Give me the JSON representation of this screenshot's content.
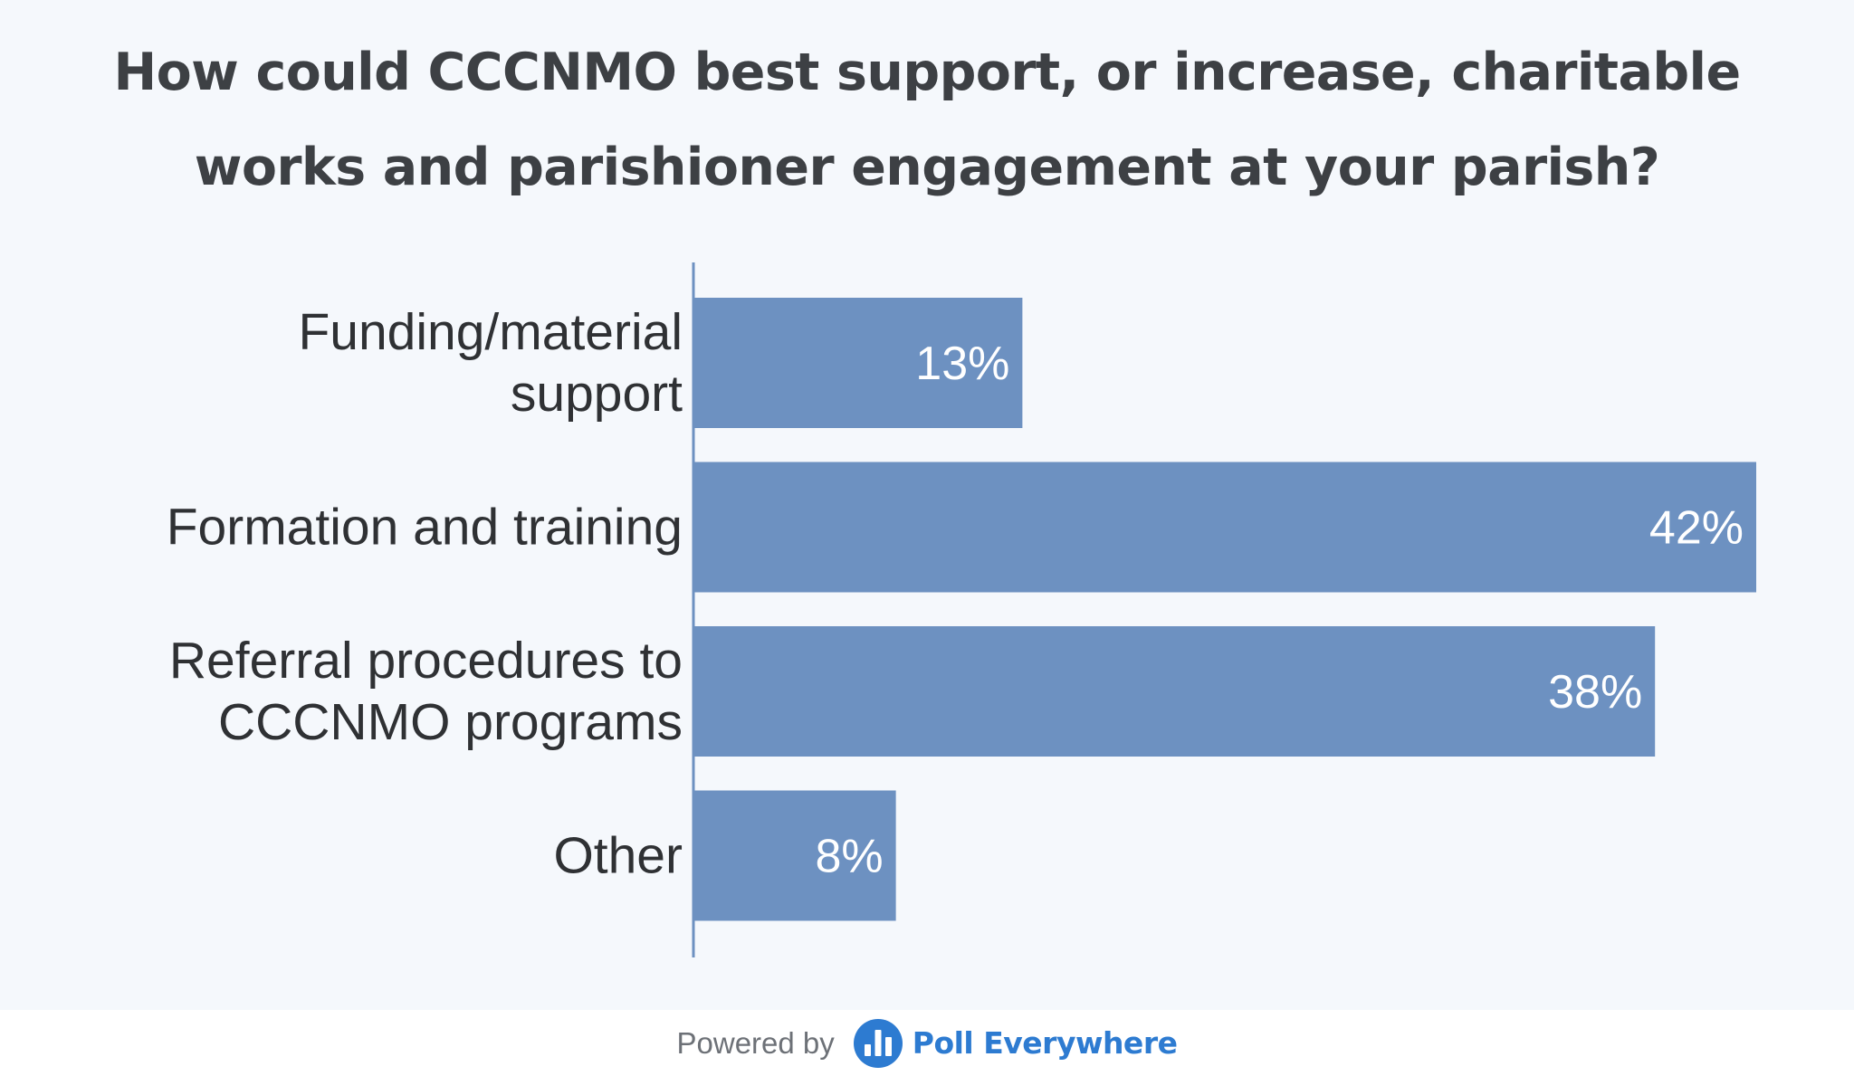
{
  "poll": {
    "title": "How could CCCNMO best support, or increase, charitable works and parishioner engagement at your parish?"
  },
  "chart_data": {
    "type": "bar",
    "orientation": "horizontal",
    "categories": [
      [
        "Funding/material",
        "support"
      ],
      [
        "Formation and training"
      ],
      [
        "Referral procedures to",
        "CCCNMO programs"
      ],
      [
        "Other"
      ]
    ],
    "values": [
      13,
      42,
      38,
      8
    ],
    "value_labels": [
      "13%",
      "42%",
      "38%",
      "8%"
    ],
    "unit": "%",
    "bar_color": "#6d91c1",
    "axis_color": "#6d91c1",
    "grid": false,
    "legend": "none"
  },
  "footer": {
    "powered_by": "Powered by",
    "brand": "Poll Everywhere",
    "brand_color": "#2d7bd1",
    "logo_icon": "poll-everywhere-bars-icon"
  }
}
